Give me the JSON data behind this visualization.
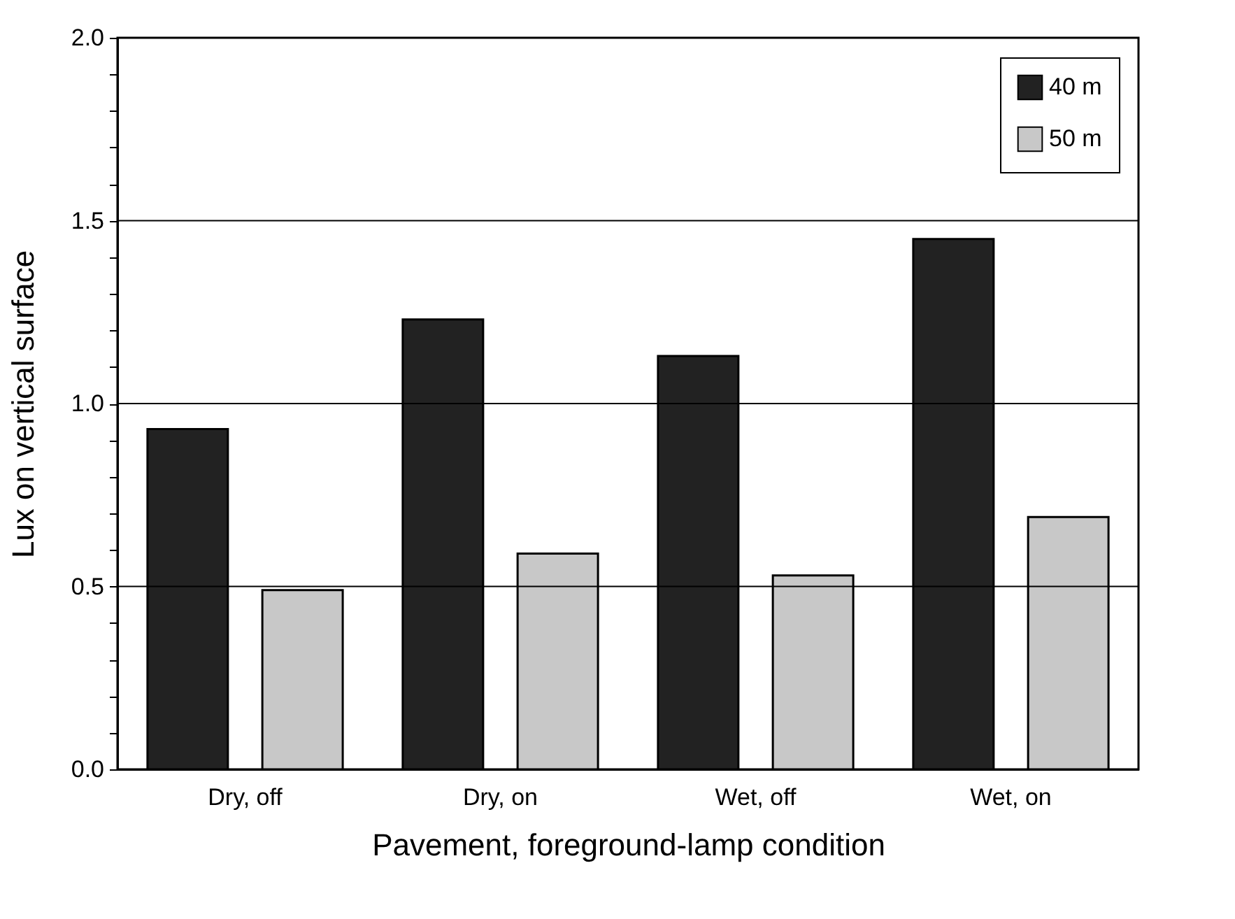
{
  "chart_data": {
    "type": "bar",
    "xlabel": "Pavement,  foreground-lamp condition",
    "ylabel": "Lux on vertical surface",
    "categories": [
      "Dry,  off",
      "Dry,  on",
      "Wet,  off",
      "Wet,  on"
    ],
    "series": [
      {
        "name": "40 m",
        "color": "#222222",
        "values": [
          0.93,
          1.23,
          1.13,
          1.45
        ]
      },
      {
        "name": "50 m",
        "color": "#c8c8c8",
        "values": [
          0.49,
          0.59,
          0.53,
          0.69
        ]
      }
    ],
    "ylim": [
      0,
      2
    ],
    "yticks": [
      {
        "value": 0,
        "label": "0.0"
      },
      {
        "value": 0.1,
        "label": null
      },
      {
        "value": 0.2,
        "label": null
      },
      {
        "value": 0.3,
        "label": null
      },
      {
        "value": 0.4,
        "label": null
      },
      {
        "value": 0.5,
        "label": "0.5"
      },
      {
        "value": 0.6,
        "label": null
      },
      {
        "value": 0.7,
        "label": null
      },
      {
        "value": 0.8,
        "label": null
      },
      {
        "value": 0.9,
        "label": null
      },
      {
        "value": 1,
        "label": "1.0"
      },
      {
        "value": 1.1,
        "label": null
      },
      {
        "value": 1.2,
        "label": null
      },
      {
        "value": 1.3,
        "label": null
      },
      {
        "value": 1.4,
        "label": null
      },
      {
        "value": 1.5,
        "label": "1.5"
      },
      {
        "value": 1.6,
        "label": null
      },
      {
        "value": 1.7,
        "label": null
      },
      {
        "value": 1.8,
        "label": null
      },
      {
        "value": 1.9,
        "label": null
      },
      {
        "value": 2,
        "label": "2.0"
      }
    ],
    "grid": "y",
    "legend": "top right"
  }
}
